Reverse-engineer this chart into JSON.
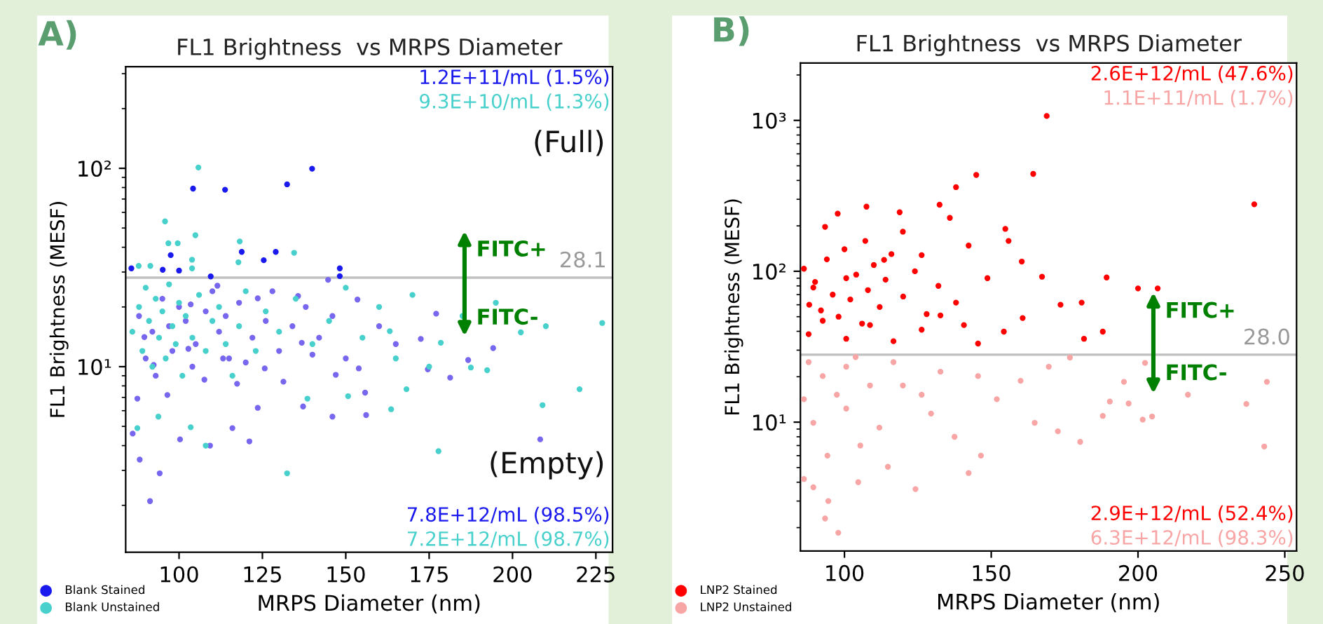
{
  "chart_data": [
    {
      "type": "scatter",
      "title": "FL1 Brightness  vs MRPS Diameter",
      "xlabel": "MRPS Diameter (nm)",
      "ylabel": "FL1 Brightness (MESF)",
      "log": "y",
      "grid": false,
      "legend": "bottom left",
      "marker": "circle",
      "xlim": [
        84,
        230
      ],
      "xticks": [
        100,
        125,
        150,
        175,
        200,
        225
      ],
      "ylim": [
        1.16,
        325
      ],
      "yticks": [
        {
          "value": 10,
          "label": "10¹"
        },
        {
          "value": 100,
          "label": "10²"
        }
      ],
      "ref_lines": [
        {
          "axis": "y",
          "value": 28.1,
          "label": "28.1",
          "color": "#c0c0c0"
        }
      ],
      "annotations": [
        "A)",
        "1.2E+11/mL (1.5%)",
        "9.3E+10/mL (1.3%)",
        "(Full)",
        "(Empty)",
        "7.8E+12/mL (98.5%)",
        "7.2E+12/mL (98.7%)",
        "FITC+",
        "FITC-"
      ],
      "series": [
        {
          "name": "Blank Stained",
          "color": "#1a1aee",
          "x": [
            85.7,
            95.1,
            100,
            97.5,
            104.2,
            113.8,
            118.8,
            125.4,
            129,
            132.4,
            139.9,
            148.2,
            148.2,
            109.5
          ],
          "values": [
            31.3,
            30.8,
            30.5,
            36.5,
            79,
            78,
            37.9,
            34.4,
            37.9,
            83,
            99.5,
            31.3,
            28.6,
            28.5
          ]
        },
        {
          "color": "#7766ee",
          "x": [
            86.1,
            88.2,
            94.2,
            91.3,
            100.3,
            121.1,
            109.3,
            116,
            123.6,
            137.2,
            146,
            156.1,
            155.8,
            181.3,
            208.3,
            194.2,
            186.7,
            172.5,
            174.6,
            153.9,
            147,
            136.8,
            131.3,
            125.7,
            117.4,
            113.2,
            107.6,
            102.8,
            96.5,
            92.4,
            87.5,
            89.6,
            135.7,
            153.5,
            144.7,
            123.6,
            111.5,
            103.5,
            177.1,
            88,
            92,
            95,
            98,
            102,
            105,
            108,
            112,
            115,
            118,
            122,
            126,
            130,
            134,
            138,
            142,
            146,
            150,
            160,
            165,
            90,
            93,
            97,
            100,
            104,
            110,
            114,
            120,
            128,
            140
          ],
          "values": [
            4.6,
            3.4,
            2.9,
            2.1,
            4.3,
            4.2,
            4.0,
            4.9,
            6.2,
            6.3,
            5.6,
            5.7,
            7.4,
            8.8,
            4.3,
            12.4,
            10.8,
            13.8,
            9.7,
            9.8,
            9.1,
            13.2,
            8.4,
            9.8,
            8.2,
            11.0,
            8.6,
            12.3,
            7.2,
            10.2,
            6.9,
            14.1,
            22.7,
            21.8,
            27.4,
            22.1,
            25.6,
            20.6,
            18.5,
            18,
            15,
            22,
            12,
            17,
            13,
            19,
            15,
            11,
            21,
            14,
            17,
            12,
            16,
            20,
            14,
            18,
            11,
            16,
            13,
            11,
            9,
            16,
            20,
            10,
            24,
            18,
            10.5,
            24,
            11.5
          ]
        },
        {
          "name": "Blank Unstained",
          "color": "#48d1cc",
          "x": [
            87.9,
            91.4,
            95.8,
            96.8,
            99.6,
            103.9,
            103.9,
            105.8,
            104.9,
            118.2,
            117.8,
            134.5,
            226.9,
            220.1,
            209,
            177.8,
            132.4,
            202.5,
            192.4,
            187.5,
            178.5,
            168.2,
            163.6,
            163.2,
            150.7,
            138.5,
            108,
            103.5,
            93.8,
            87.5,
            86,
            88,
            89,
            90,
            91,
            92,
            93,
            94,
            95,
            96,
            97,
            98,
            99,
            100,
            101,
            102,
            104,
            106,
            108,
            110,
            112,
            114,
            116,
            118,
            120,
            123,
            126,
            130,
            135,
            140,
            145,
            150,
            155,
            160,
            170,
            185,
            195,
            210,
            165,
            175
          ],
          "values": [
            32.2,
            32.2,
            54,
            41.9,
            41.9,
            34.6,
            31.3,
            101,
            46,
            42.8,
            33.6,
            37.5,
            16.6,
            7.7,
            6.4,
            3.75,
            2.9,
            14.9,
            9.6,
            9.9,
            13.2,
            7.7,
            6.1,
            15.1,
            7.1,
            6.9,
            4.0,
            4.95,
            5.6,
            4.9,
            15,
            20,
            12,
            25,
            17,
            10,
            22,
            14,
            19,
            11,
            26,
            16,
            13,
            21,
            9,
            18,
            14,
            23,
            12,
            17,
            20,
            13,
            9,
            16,
            24,
            12,
            19,
            15,
            22,
            13,
            17,
            25,
            14,
            20,
            23,
            18,
            21,
            16,
            11,
            10
          ]
        }
      ]
    },
    {
      "type": "scatter",
      "title": "FL1 Brightness  vs MRPS Diameter",
      "xlabel": "MRPS Diameter (nm)",
      "ylabel": "FL1 Brightness (MESF)",
      "log": "y",
      "grid": false,
      "legend": "bottom left",
      "marker": "circle",
      "xlim": [
        85,
        254
      ],
      "xticks": [
        100,
        150,
        200,
        250
      ],
      "ylim": [
        1.4,
        2400
      ],
      "yticks": [
        {
          "value": 10,
          "label": "10¹"
        },
        {
          "value": 100,
          "label": "10²"
        },
        {
          "value": 1000,
          "label": "10³"
        }
      ],
      "ref_lines": [
        {
          "axis": "y",
          "value": 28.0,
          "label": "28.0",
          "color": "#c0c0c0"
        }
      ],
      "annotations": [
        "B)",
        "2.6E+12/mL (47.6%)",
        "1.1E+11/mL (1.7%)",
        "2.9E+12/mL (52.4%)",
        "6.3E+12/mL (98.3%)",
        "FITC+",
        "FITC-"
      ],
      "series": [
        {
          "name": "LNP2 Stained",
          "color": "#ff0000",
          "x": [
            168.9,
            164.3,
            144.9,
            138,
            239.6,
            132.4,
            107.5,
            97.7,
            118.8,
            154.8,
            189.3,
            200,
            206.7,
            173.6,
            180.8,
            167.3,
            160.4,
            155.9,
            148.7,
            142.3,
            135.9,
            126.3,
            119.9,
            113.5,
            107.1,
            100.6,
            93.4,
            89.4,
            86.2,
            181.6,
            188,
            154.3,
            160.7,
            140.7,
            132.7,
            126.3,
            116.7,
            108.7,
            100.6,
            92.6,
            87.8,
            145.5,
            88,
            90,
            92,
            94,
            96,
            98,
            100,
            102,
            104,
            106,
            108,
            110,
            112,
            114,
            116,
            120,
            124,
            128,
            132,
            138
          ],
          "values": [
            1070,
            442,
            435,
            361,
            278,
            276,
            268,
            241,
            246,
            191,
            91,
            77,
            77,
            60,
            62,
            92,
            116,
            159,
            90,
            148,
            226,
            128,
            183,
            119,
            159,
            90,
            197,
            78,
            104,
            35.7,
            39.8,
            39.8,
            49,
            44,
            51,
            41,
            34.4,
            44,
            35.7,
            47,
            38.3,
            33.2,
            60,
            85,
            55,
            120,
            70,
            50,
            140,
            65,
            95,
            45,
            75,
            110,
            58,
            88,
            130,
            68,
            100,
            52,
            80,
            62
          ]
        },
        {
          "name": "LNP2 Unstained",
          "color": "#f8a5a5",
          "x": [
            93.4,
            97.9,
            94.5,
            86.2,
            89.4,
            104.7,
            124.2,
            114.8,
            142.3,
            146.5,
            180.3,
            243,
            236.9,
            243.9,
            217,
            201.6,
            204.8,
            190.4,
            196.8,
            202.4,
            195.2,
            188,
            172.7,
            164.8,
            160,
            176.8,
            169.6,
            151.9,
            137.5,
            129.5,
            119.9,
            111.9,
            105.4,
            100.6,
            94.2,
            89.4,
            86.2,
            92.6,
            100.6,
            108.7,
            116.7,
            132.7,
            145.5,
            126.3,
            87.8,
            97.4,
            103.8
          ],
          "values": [
            2.3,
            1.85,
            3.0,
            4.2,
            3.7,
            4.0,
            3.6,
            5.06,
            4.6,
            6.0,
            7.4,
            6.9,
            13.2,
            18.5,
            15.2,
            10.4,
            10.9,
            13.7,
            13.3,
            24.7,
            18.5,
            11.0,
            8.7,
            9.9,
            18.8,
            26.8,
            23.3,
            14.2,
            8.0,
            11.4,
            17.5,
            9.2,
            7.0,
            12.3,
            6.0,
            9.9,
            14.2,
            20.2,
            23.3,
            17.5,
            25,
            21.6,
            20.2,
            15.2,
            25,
            15.2,
            27
          ]
        }
      ]
    }
  ]
}
